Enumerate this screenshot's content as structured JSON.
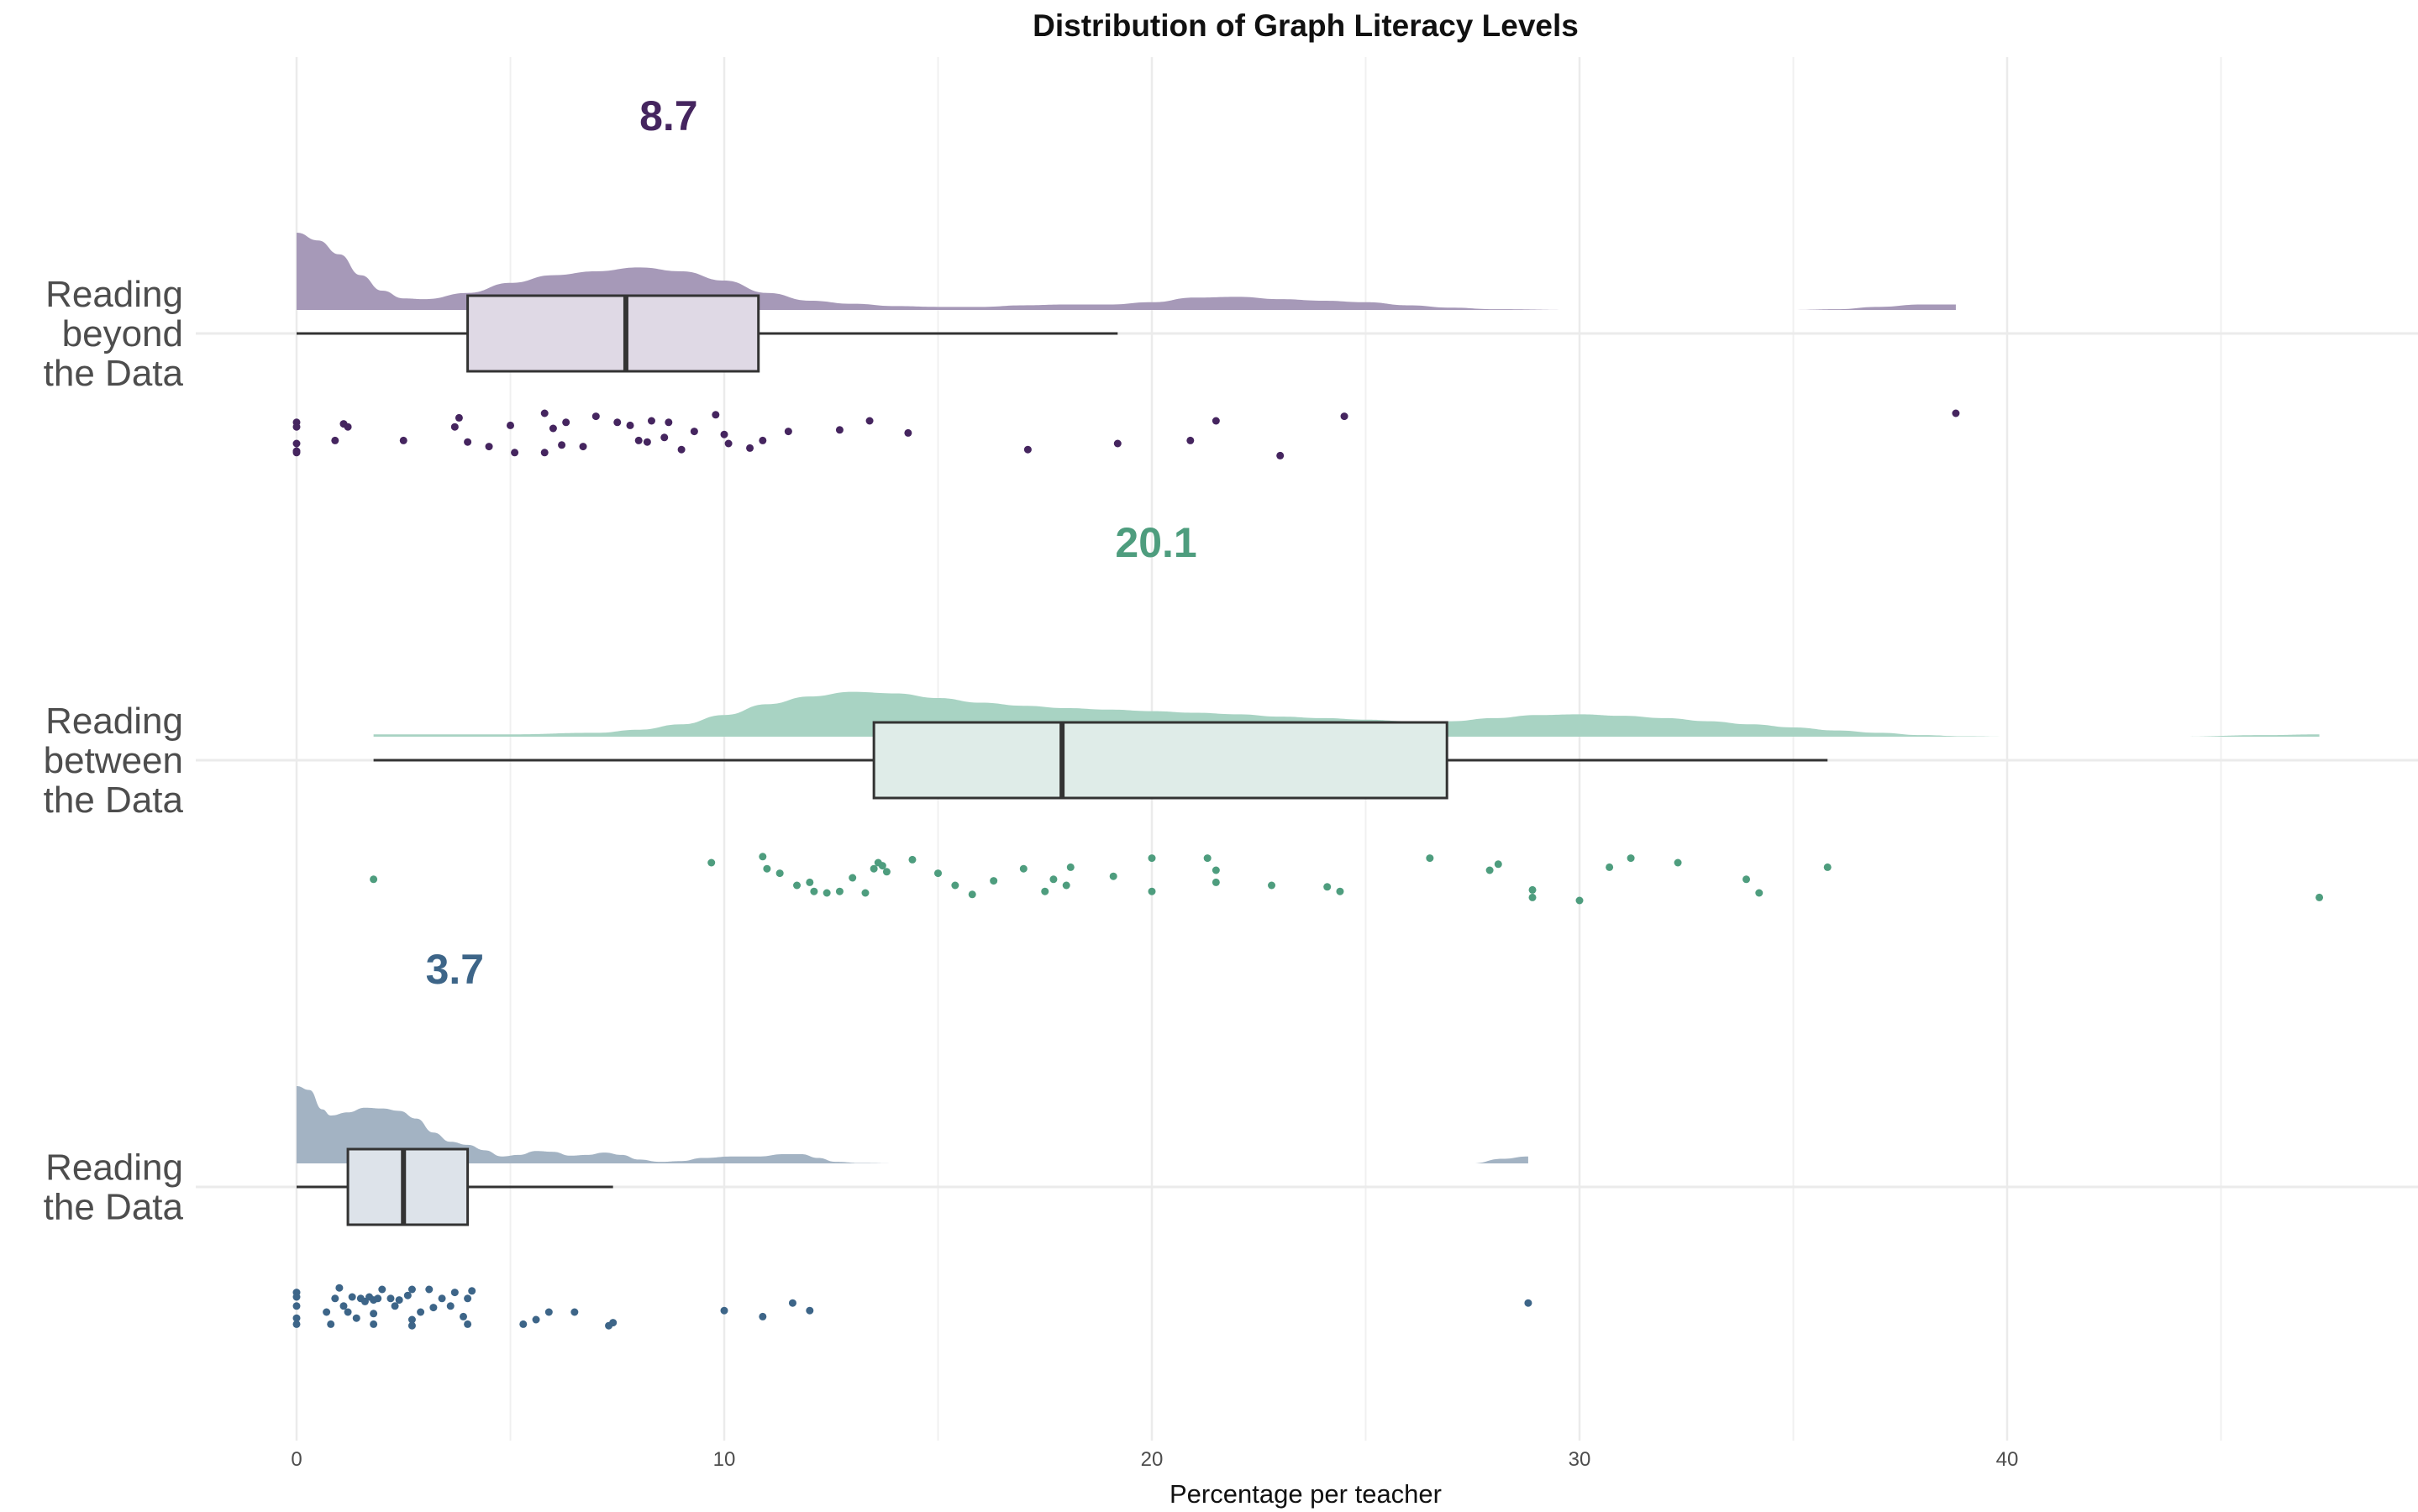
{
  "chart_data": {
    "type": "raincloud",
    "title": "Distribution of Graph Literacy Levels",
    "xlabel": "Percentage per teacher",
    "ylabel": "",
    "xlim": [
      -2.3,
      49.5
    ],
    "xticks": [
      0,
      10,
      20,
      30,
      40
    ],
    "grid": true,
    "legend": "none",
    "categories": [
      {
        "label": "Reading\nbeyond\nthe Data",
        "mean_label": "8.7",
        "mean": 8.7,
        "color": "#45255f",
        "fill_color": "#a699b8",
        "box_fill": "#dfd9e5",
        "box": {
          "whisker_low": 0,
          "q1": 4.0,
          "median": 7.7,
          "q3": 10.8,
          "whisker_high": 19.2
        },
        "density": [
          [
            0,
            1.0
          ],
          [
            0.5,
            0.9
          ],
          [
            1,
            0.72
          ],
          [
            1.5,
            0.45
          ],
          [
            2,
            0.25
          ],
          [
            2.5,
            0.15
          ],
          [
            3,
            0.14
          ],
          [
            4,
            0.22
          ],
          [
            5,
            0.35
          ],
          [
            6,
            0.45
          ],
          [
            7,
            0.5
          ],
          [
            8,
            0.55
          ],
          [
            9,
            0.5
          ],
          [
            10,
            0.38
          ],
          [
            11,
            0.22
          ],
          [
            12,
            0.12
          ],
          [
            13,
            0.08
          ],
          [
            14,
            0.05
          ],
          [
            15,
            0.04
          ],
          [
            16,
            0.04
          ],
          [
            17,
            0.06
          ],
          [
            18,
            0.07
          ],
          [
            19,
            0.07
          ],
          [
            20,
            0.1
          ],
          [
            21,
            0.16
          ],
          [
            22,
            0.17
          ],
          [
            23,
            0.14
          ],
          [
            24,
            0.12
          ],
          [
            25,
            0.1
          ],
          [
            26,
            0.06
          ],
          [
            27,
            0.03
          ],
          [
            28,
            0.01
          ],
          [
            30,
            0
          ],
          [
            35,
            0
          ],
          [
            36,
            0.01
          ],
          [
            37,
            0.04
          ],
          [
            38,
            0.07
          ],
          [
            38.8,
            0.07
          ]
        ],
        "points": [
          [
            0,
            -0.3
          ],
          [
            0,
            -0.45
          ],
          [
            0,
            -1.0
          ],
          [
            0,
            -1.25
          ],
          [
            0,
            -1.3
          ],
          [
            1.1,
            -0.35
          ],
          [
            1.2,
            -0.45
          ],
          [
            0.9,
            -0.9
          ],
          [
            2.5,
            -0.9
          ],
          [
            3.8,
            -0.15
          ],
          [
            3.7,
            -0.45
          ],
          [
            4.0,
            -0.95
          ],
          [
            4.5,
            -1.1
          ],
          [
            5.1,
            -1.3
          ],
          [
            5.0,
            -0.4
          ],
          [
            5.8,
            0
          ],
          [
            6.0,
            -0.5
          ],
          [
            5.8,
            -1.3
          ],
          [
            6.2,
            -1.05
          ],
          [
            6.7,
            -1.1
          ],
          [
            6.3,
            -0.3
          ],
          [
            7.0,
            -0.1
          ],
          [
            7.5,
            -0.3
          ],
          [
            7.8,
            -0.4
          ],
          [
            8.0,
            -0.9
          ],
          [
            8.2,
            -0.95
          ],
          [
            8.3,
            -0.25
          ],
          [
            8.7,
            -0.3
          ],
          [
            8.6,
            -0.8
          ],
          [
            9.0,
            -1.2
          ],
          [
            9.3,
            -0.6
          ],
          [
            9.8,
            -0.05
          ],
          [
            10.1,
            -1.0
          ],
          [
            10.0,
            -0.7
          ],
          [
            10.6,
            -1.15
          ],
          [
            10.9,
            -0.9
          ],
          [
            11.5,
            -0.6
          ],
          [
            12.7,
            -0.55
          ],
          [
            13.4,
            -0.25
          ],
          [
            14.3,
            -0.65
          ],
          [
            17.1,
            -1.2
          ],
          [
            19.2,
            -1.0
          ],
          [
            20.9,
            -0.9
          ],
          [
            21.5,
            -0.25
          ],
          [
            23.0,
            -1.4
          ],
          [
            24.5,
            -0.1
          ],
          [
            38.8,
            0
          ]
        ]
      },
      {
        "label": "Reading\nbetween\nthe Data",
        "mean_label": "20.1",
        "mean": 20.1,
        "color": "#4e9d7e",
        "fill_color": "#a8d3c3",
        "box_fill": "#dfece8",
        "box": {
          "whisker_low": 1.8,
          "q1": 13.5,
          "median": 17.9,
          "q3": 26.9,
          "whisker_high": 35.8
        },
        "density": [
          [
            1.8,
            0.03
          ],
          [
            5,
            0.03
          ],
          [
            7,
            0.05
          ],
          [
            8,
            0.09
          ],
          [
            9,
            0.16
          ],
          [
            10,
            0.28
          ],
          [
            11,
            0.42
          ],
          [
            12,
            0.52
          ],
          [
            13,
            0.58
          ],
          [
            14,
            0.56
          ],
          [
            15,
            0.5
          ],
          [
            16,
            0.44
          ],
          [
            17,
            0.4
          ],
          [
            18,
            0.37
          ],
          [
            19,
            0.35
          ],
          [
            20,
            0.33
          ],
          [
            21,
            0.31
          ],
          [
            22,
            0.29
          ],
          [
            23,
            0.26
          ],
          [
            24,
            0.24
          ],
          [
            25,
            0.22
          ],
          [
            26,
            0.2
          ],
          [
            27,
            0.2
          ],
          [
            28,
            0.24
          ],
          [
            29,
            0.28
          ],
          [
            30,
            0.29
          ],
          [
            31,
            0.27
          ],
          [
            32,
            0.24
          ],
          [
            33,
            0.2
          ],
          [
            34,
            0.16
          ],
          [
            35,
            0.12
          ],
          [
            36,
            0.08
          ],
          [
            37,
            0.05
          ],
          [
            38,
            0.02
          ],
          [
            39,
            0.005
          ],
          [
            40,
            0
          ],
          [
            44,
            0
          ],
          [
            46,
            0.02
          ],
          [
            47.3,
            0.03
          ]
        ],
        "points": [
          [
            1.8,
            -1.3
          ],
          [
            9.7,
            -0.75
          ],
          [
            10.9,
            -0.55
          ],
          [
            11.3,
            -1.1
          ],
          [
            11.0,
            -0.95
          ],
          [
            11.7,
            -1.5
          ],
          [
            12.0,
            -1.4
          ],
          [
            12.1,
            -1.7
          ],
          [
            12.4,
            -1.75
          ],
          [
            12.7,
            -1.7
          ],
          [
            13.0,
            -1.25
          ],
          [
            13.3,
            -1.75
          ],
          [
            13.6,
            -0.75
          ],
          [
            13.7,
            -0.85
          ],
          [
            13.8,
            -1.05
          ],
          [
            13.5,
            -0.95
          ],
          [
            14.4,
            -0.65
          ],
          [
            15.0,
            -1.1
          ],
          [
            15.4,
            -1.5
          ],
          [
            15.8,
            -1.8
          ],
          [
            16.3,
            -1.35
          ],
          [
            17.0,
            -0.95
          ],
          [
            17.5,
            -1.7
          ],
          [
            17.7,
            -1.3
          ],
          [
            18.0,
            -1.5
          ],
          [
            18.1,
            -0.9
          ],
          [
            19.1,
            -1.2
          ],
          [
            20.0,
            -0.6
          ],
          [
            20.0,
            -1.7
          ],
          [
            21.3,
            -0.6
          ],
          [
            21.5,
            -1.0
          ],
          [
            21.5,
            -1.4
          ],
          [
            22.8,
            -1.5
          ],
          [
            24.1,
            -1.55
          ],
          [
            24.4,
            -1.7
          ],
          [
            26.5,
            -0.6
          ],
          [
            27.9,
            -1.0
          ],
          [
            28.1,
            -0.8
          ],
          [
            28.9,
            -1.65
          ],
          [
            28.9,
            -1.9
          ],
          [
            30.0,
            -2.0
          ],
          [
            30.7,
            -0.9
          ],
          [
            31.2,
            -0.6
          ],
          [
            32.3,
            -0.75
          ],
          [
            33.9,
            -1.3
          ],
          [
            34.2,
            -1.75
          ],
          [
            35.8,
            -0.9
          ],
          [
            47.3,
            -1.9
          ]
        ]
      },
      {
        "label": "Reading\nthe Data",
        "mean_label": "3.7",
        "mean": 3.7,
        "color": "#3d6588",
        "fill_color": "#a3b3c3",
        "box_fill": "#dde3ea",
        "box": {
          "whisker_low": 0,
          "q1": 1.2,
          "median": 2.5,
          "q3": 4.0,
          "whisker_high": 7.4
        },
        "density": [
          [
            0,
            1.0
          ],
          [
            0.3,
            0.95
          ],
          [
            0.6,
            0.7
          ],
          [
            0.8,
            0.62
          ],
          [
            1.2,
            0.66
          ],
          [
            1.6,
            0.72
          ],
          [
            2.0,
            0.71
          ],
          [
            2.4,
            0.68
          ],
          [
            2.8,
            0.58
          ],
          [
            3.2,
            0.4
          ],
          [
            3.6,
            0.28
          ],
          [
            4.0,
            0.24
          ],
          [
            4.4,
            0.17
          ],
          [
            4.8,
            0.09
          ],
          [
            5.2,
            0.11
          ],
          [
            5.6,
            0.16
          ],
          [
            6.0,
            0.15
          ],
          [
            6.4,
            0.1
          ],
          [
            6.8,
            0.11
          ],
          [
            7.2,
            0.14
          ],
          [
            7.6,
            0.11
          ],
          [
            8.0,
            0.05
          ],
          [
            8.5,
            0.02
          ],
          [
            9.0,
            0.03
          ],
          [
            9.5,
            0.07
          ],
          [
            10.2,
            0.09
          ],
          [
            10.8,
            0.09
          ],
          [
            11.4,
            0.12
          ],
          [
            11.8,
            0.12
          ],
          [
            12.2,
            0.07
          ],
          [
            12.6,
            0.02
          ],
          [
            13.2,
            0.005
          ],
          [
            14,
            0
          ],
          [
            27.5,
            0
          ],
          [
            28.2,
            0.06
          ],
          [
            28.8,
            0.09
          ]
        ],
        "points": [
          [
            0,
            -0.85
          ],
          [
            0,
            -1.0
          ],
          [
            0,
            -1.3
          ],
          [
            0,
            -1.7
          ],
          [
            0,
            -1.9
          ],
          [
            0.7,
            -1.5
          ],
          [
            0.8,
            -1.9
          ],
          [
            0.9,
            -1.05
          ],
          [
            1.0,
            -0.7
          ],
          [
            1.1,
            -1.3
          ],
          [
            1.2,
            -1.5
          ],
          [
            1.3,
            -1.0
          ],
          [
            1.4,
            -1.7
          ],
          [
            1.5,
            -1.05
          ],
          [
            1.6,
            -1.15
          ],
          [
            1.7,
            -1.0
          ],
          [
            1.8,
            -1.1
          ],
          [
            1.8,
            -1.55
          ],
          [
            1.9,
            -1.05
          ],
          [
            1.8,
            -1.9
          ],
          [
            2.0,
            -0.75
          ],
          [
            2.2,
            -1.05
          ],
          [
            2.3,
            -1.3
          ],
          [
            2.4,
            -1.1
          ],
          [
            2.6,
            -0.95
          ],
          [
            2.7,
            -0.75
          ],
          [
            2.7,
            -1.75
          ],
          [
            2.7,
            -1.95
          ],
          [
            2.9,
            -1.5
          ],
          [
            3.1,
            -0.75
          ],
          [
            3.2,
            -1.35
          ],
          [
            3.4,
            -1.05
          ],
          [
            3.6,
            -1.3
          ],
          [
            3.7,
            -0.85
          ],
          [
            3.9,
            -1.65
          ],
          [
            4.0,
            -1.9
          ],
          [
            4.1,
            -0.8
          ],
          [
            4.0,
            -1.05
          ],
          [
            5.3,
            -1.9
          ],
          [
            5.6,
            -1.75
          ],
          [
            5.9,
            -1.5
          ],
          [
            6.5,
            -1.5
          ],
          [
            7.3,
            -1.95
          ],
          [
            7.4,
            -1.85
          ],
          [
            10.0,
            -1.45
          ],
          [
            10.9,
            -1.65
          ],
          [
            11.6,
            -1.2
          ],
          [
            12.0,
            -1.45
          ],
          [
            28.8,
            -1.2
          ]
        ]
      }
    ]
  }
}
